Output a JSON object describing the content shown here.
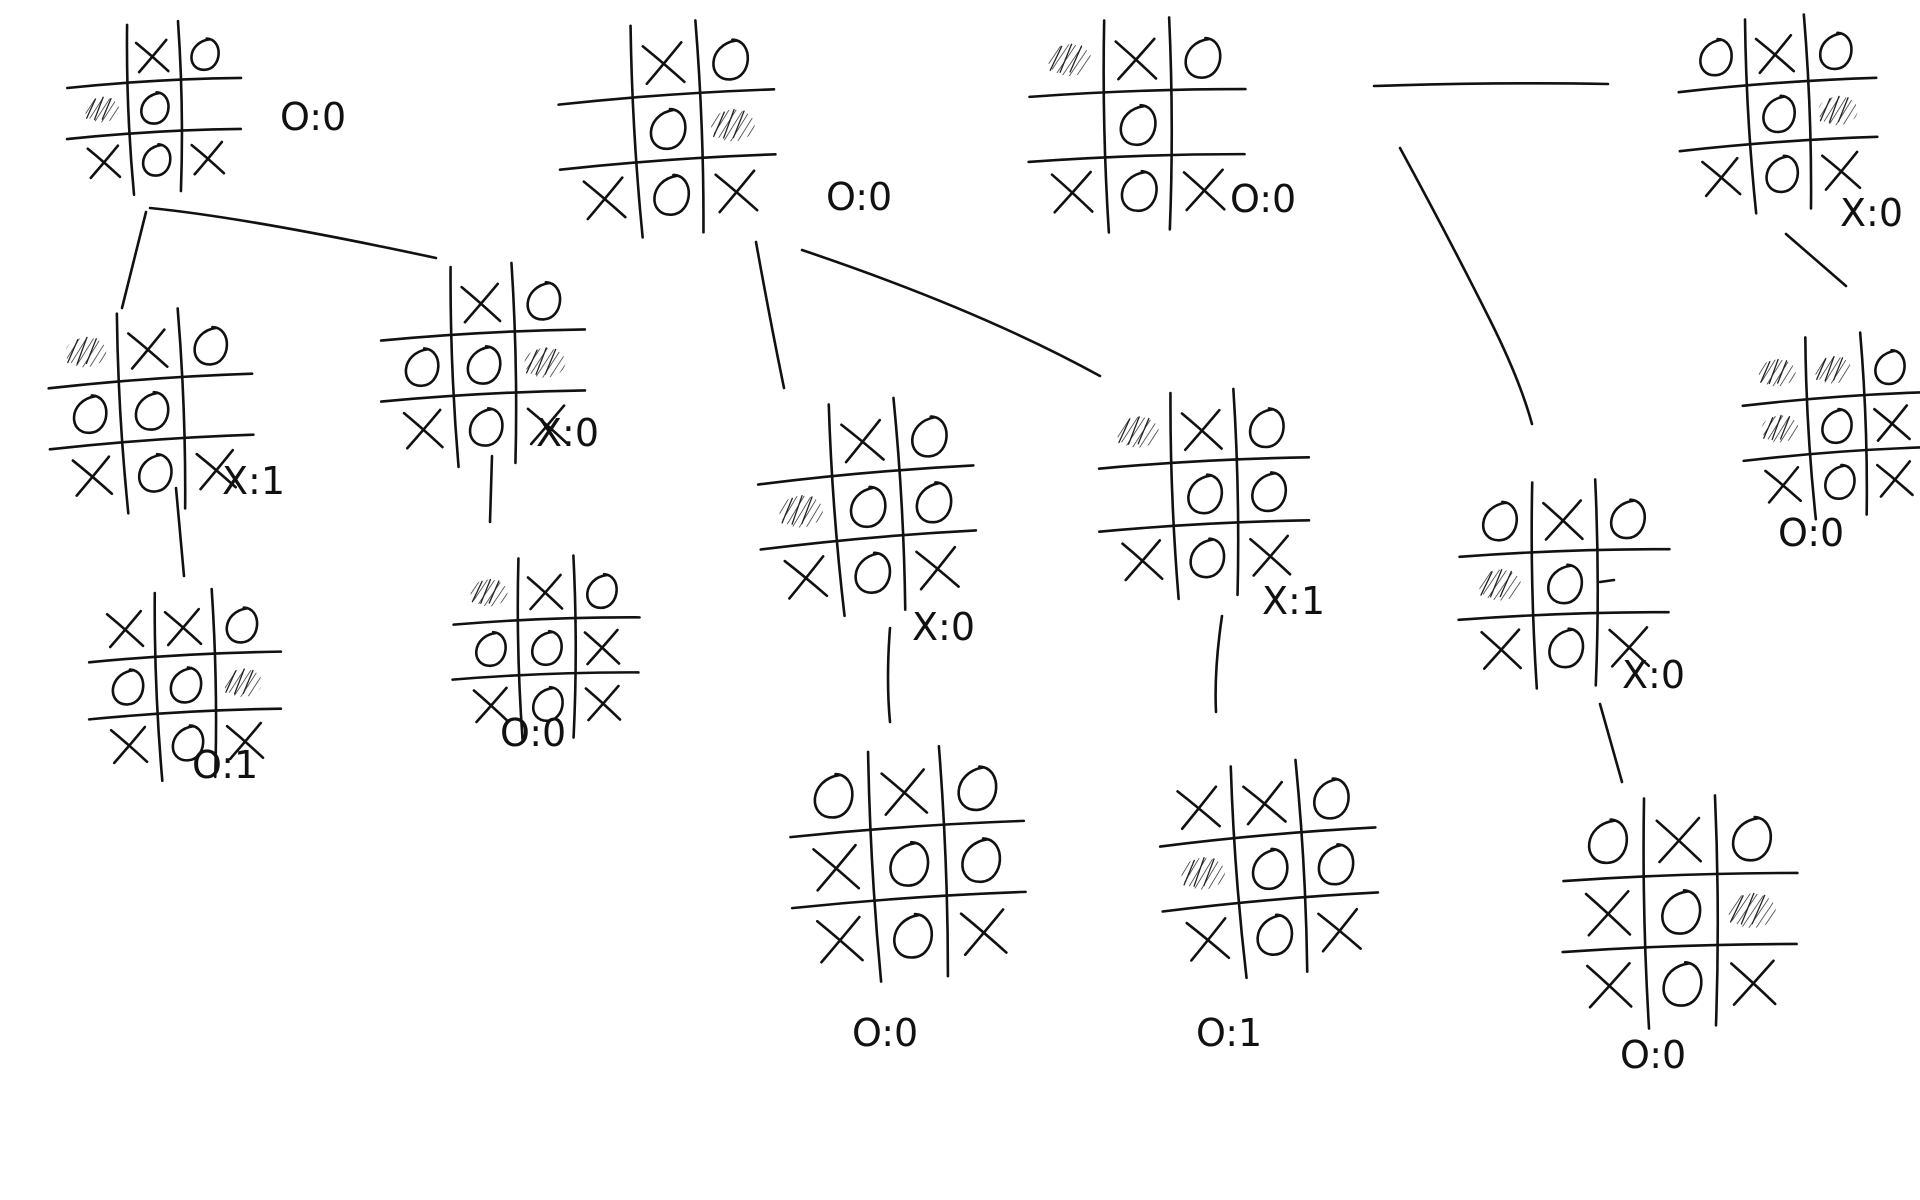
{
  "boards": [
    {
      "id": "a1",
      "cells": [
        "",
        "X",
        "O",
        "B",
        "O",
        "",
        "X",
        "O",
        "X"
      ],
      "score": "O:0"
    },
    {
      "id": "a2",
      "cells": [
        "",
        "X",
        "O",
        "",
        "O",
        "B",
        "X",
        "O",
        "X"
      ],
      "score": "O:0"
    },
    {
      "id": "a3",
      "cells": [
        "B",
        "X",
        "O",
        "",
        "O",
        "",
        "X",
        "O",
        "X"
      ],
      "score": "O:0"
    },
    {
      "id": "a4",
      "cells": [
        "O",
        "X",
        "O",
        "",
        "O",
        "B",
        "X",
        "O",
        "X"
      ],
      "score": "X:0"
    },
    {
      "id": "b1",
      "cells": [
        "B",
        "X",
        "O",
        "O",
        "O",
        "",
        "X",
        "O",
        "X"
      ],
      "score": "X:1"
    },
    {
      "id": "b2",
      "cells": [
        "",
        "X",
        "O",
        "O",
        "O",
        "B",
        "X",
        "O",
        "X"
      ],
      "score": "X:0"
    },
    {
      "id": "b3",
      "cells": [
        "",
        "X",
        "O",
        "B",
        "O",
        "O",
        "X",
        "O",
        "X"
      ],
      "score": "X:0"
    },
    {
      "id": "b4",
      "cells": [
        "B",
        "X",
        "O",
        "",
        "O",
        "O",
        "X",
        "O",
        "X"
      ],
      "score": "X:1"
    },
    {
      "id": "b5",
      "cells": [
        "O",
        "X",
        "O",
        "B",
        "O",
        "",
        "X",
        "O",
        "X"
      ],
      "score": "X:0"
    },
    {
      "id": "b6",
      "cells": [
        "B",
        "B",
        "O",
        "B",
        "O",
        "X",
        "X",
        "O",
        "X"
      ],
      "score": "O:0"
    },
    {
      "id": "c1",
      "cells": [
        "X",
        "X",
        "O",
        "O",
        "O",
        "B",
        "X",
        "O",
        "X"
      ],
      "score": "O:1"
    },
    {
      "id": "c2",
      "cells": [
        "B",
        "X",
        "O",
        "O",
        "O",
        "X",
        "X",
        "O",
        "X"
      ],
      "score": "O:0"
    },
    {
      "id": "c3",
      "cells": [
        "O",
        "X",
        "O",
        "X",
        "O",
        "O",
        "X",
        "O",
        "X"
      ],
      "score": "O:0"
    },
    {
      "id": "c4",
      "cells": [
        "X",
        "X",
        "O",
        "B",
        "O",
        "O",
        "X",
        "O",
        "X"
      ],
      "score": "O:1"
    },
    {
      "id": "c5",
      "cells": [
        "O",
        "X",
        "O",
        "X",
        "O",
        "B",
        "X",
        "O",
        "X"
      ],
      "score": "O:0"
    }
  ]
}
